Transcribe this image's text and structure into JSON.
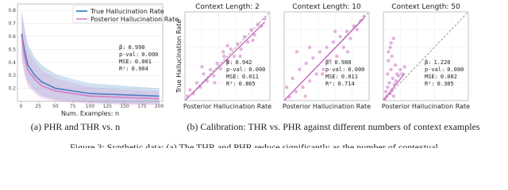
{
  "chart_data": [
    {
      "type": "line",
      "xlabel": "Num. Examples: n",
      "xlim": [
        -5,
        205
      ],
      "xticks": [
        0,
        25,
        50,
        75,
        100,
        125,
        150,
        175,
        200
      ],
      "ylim": [
        0.1,
        0.85
      ],
      "yticks": [
        0.2,
        0.3,
        0.4,
        0.5,
        0.6,
        0.7,
        0.8
      ],
      "x": [
        1,
        5,
        10,
        20,
        30,
        50,
        75,
        100,
        150,
        200
      ],
      "series": [
        {
          "name": "True Hallucination Rate",
          "color": "#2b7bba",
          "values": [
            0.62,
            0.5,
            0.38,
            0.3,
            0.25,
            0.2,
            0.18,
            0.16,
            0.15,
            0.14
          ],
          "lower": [
            0.45,
            0.33,
            0.24,
            0.18,
            0.14,
            0.11,
            0.1,
            0.09,
            0.08,
            0.08
          ],
          "upper": [
            0.8,
            0.68,
            0.54,
            0.44,
            0.38,
            0.31,
            0.27,
            0.24,
            0.22,
            0.2
          ]
        },
        {
          "name": "Posterior Hallucination Rate",
          "color": "#d47fca",
          "values": [
            0.6,
            0.45,
            0.34,
            0.27,
            0.22,
            0.18,
            0.16,
            0.14,
            0.13,
            0.12
          ],
          "lower": [
            0.42,
            0.3,
            0.21,
            0.16,
            0.12,
            0.1,
            0.09,
            0.08,
            0.07,
            0.07
          ],
          "upper": [
            0.78,
            0.63,
            0.5,
            0.4,
            0.34,
            0.28,
            0.24,
            0.21,
            0.19,
            0.18
          ]
        }
      ],
      "stats": [
        {
          "label": "β:",
          "value": "0.990"
        },
        {
          "label": "p-val:",
          "value": "0.000"
        },
        {
          "label": "MSE:",
          "value": "0.001"
        },
        {
          "label": "R²:",
          "value": "0.904"
        }
      ]
    },
    {
      "type": "scatter",
      "title": "Context Length: 2",
      "xlabel": "Posterior Hallucination Rate",
      "ylabel": "True Hallucination Rate",
      "xlim": [
        0,
        1
      ],
      "ylim": [
        0,
        1
      ],
      "color": "#d47fca",
      "x": [
        0.03,
        0.06,
        0.1,
        0.14,
        0.18,
        0.22,
        0.26,
        0.3,
        0.34,
        0.38,
        0.42,
        0.46,
        0.5,
        0.54,
        0.58,
        0.62,
        0.66,
        0.7,
        0.74,
        0.78,
        0.82,
        0.86,
        0.9,
        0.94,
        0.2,
        0.35,
        0.5,
        0.65,
        0.8,
        0.45
      ],
      "y": [
        0.05,
        0.12,
        0.08,
        0.2,
        0.15,
        0.3,
        0.22,
        0.35,
        0.28,
        0.42,
        0.36,
        0.5,
        0.44,
        0.58,
        0.5,
        0.64,
        0.58,
        0.72,
        0.66,
        0.8,
        0.74,
        0.86,
        0.84,
        0.92,
        0.38,
        0.2,
        0.62,
        0.5,
        0.68,
        0.55
      ],
      "stats": [
        {
          "label": "β:",
          "value": "0.942"
        },
        {
          "label": "p-val:",
          "value": "0.000"
        },
        {
          "label": "MSE:",
          "value": "0.011"
        },
        {
          "label": "R²:",
          "value": "0.865"
        }
      ]
    },
    {
      "type": "scatter",
      "title": "Context Length: 10",
      "xlabel": "Posterior Hallucination Rate",
      "xlim": [
        0,
        1
      ],
      "ylim": [
        0,
        1
      ],
      "color": "#d47fca",
      "x": [
        0.03,
        0.06,
        0.1,
        0.14,
        0.18,
        0.22,
        0.26,
        0.3,
        0.34,
        0.38,
        0.42,
        0.46,
        0.5,
        0.54,
        0.58,
        0.62,
        0.66,
        0.7,
        0.74,
        0.78,
        0.82,
        0.86,
        0.9,
        0.94,
        0.15,
        0.3,
        0.45,
        0.6,
        0.75,
        0.25
      ],
      "y": [
        0.15,
        0.04,
        0.25,
        0.1,
        0.35,
        0.15,
        0.42,
        0.22,
        0.48,
        0.3,
        0.55,
        0.35,
        0.6,
        0.45,
        0.66,
        0.5,
        0.72,
        0.6,
        0.78,
        0.7,
        0.84,
        0.8,
        0.9,
        0.95,
        0.55,
        0.6,
        0.3,
        0.78,
        0.55,
        0.05
      ],
      "stats": [
        {
          "label": "β:",
          "value": "0.988"
        },
        {
          "label": "p-val:",
          "value": "0.000"
        },
        {
          "label": "MSE:",
          "value": "0.011"
        },
        {
          "label": "R²:",
          "value": "0.714"
        }
      ]
    },
    {
      "type": "scatter",
      "title": "Context Length: 50",
      "xlabel": "Posterior Hallucination Rate",
      "xlim": [
        0,
        1
      ],
      "ylim": [
        0,
        1
      ],
      "color": "#d47fca",
      "x": [
        0.02,
        0.03,
        0.04,
        0.05,
        0.05,
        0.06,
        0.07,
        0.08,
        0.08,
        0.09,
        0.1,
        0.1,
        0.11,
        0.12,
        0.13,
        0.14,
        0.15,
        0.16,
        0.18,
        0.2,
        0.22,
        0.25,
        0.06,
        0.09,
        0.12
      ],
      "y": [
        0.02,
        0.1,
        0.05,
        0.3,
        0.15,
        0.45,
        0.2,
        0.6,
        0.08,
        0.35,
        0.5,
        0.12,
        0.25,
        0.7,
        0.18,
        0.4,
        0.22,
        0.3,
        0.28,
        0.35,
        0.3,
        0.38,
        0.55,
        0.65,
        0.05
      ],
      "stats": [
        {
          "label": "β:",
          "value": "1.220"
        },
        {
          "label": "p-val:",
          "value": "0.000"
        },
        {
          "label": "MSE:",
          "value": "0.002"
        },
        {
          "label": "R²:",
          "value": "0.305"
        }
      ]
    }
  ],
  "captions": {
    "a": "(a) PHR and THR vs. n",
    "b": "(b) Calibration: THR vs. PHR against different numbers of context examples"
  },
  "figure_caption": "Figure 3: Synthetic data: (a) The THR and PHR reduce significantly as the number of contextual"
}
